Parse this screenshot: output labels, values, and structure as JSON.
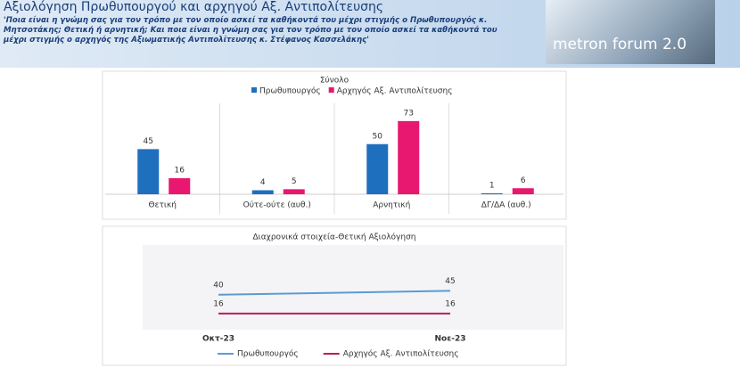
{
  "header": {
    "title": "Αξιολόγηση Πρωθυπουργού και αρχηγού Αξ. Αντιπολίτευσης",
    "subtitle": "'Ποια είναι η γνώμη σας για τον τρόπο με τον οποίο ασκεί τα καθήκοντά του μέχρι στιγμής ο Πρωθυπουργός κ. Μητσοτάκης; Θετική ή αρνητική; Και ποια είναι η γνώμη σας για τον τρόπο με τον οποίο ασκεί τα καθήκοντά του μέχρι στιγμής ο αρχηγός της Αξιωματικής Αντιπολίτευσης κ. Στέφανος Κασσελάκης'",
    "logo": "metron forum 2.0"
  },
  "chart_data": [
    {
      "type": "bar",
      "title": "Σύνολο",
      "categories": [
        "Θετική",
        "Ούτε-ούτε (αυθ.)",
        "Αρνητική",
        "ΔΓ/ΔΑ (αυθ.)"
      ],
      "series": [
        {
          "name": "Πρωθυπουργός",
          "color": "#1f6fbf",
          "values": [
            45,
            4,
            50,
            1
          ]
        },
        {
          "name": "Αρχηγός Αξ. Αντιπολίτευσης",
          "color": "#e8176f",
          "values": [
            16,
            5,
            73,
            6
          ]
        }
      ],
      "ylim": [
        0,
        80
      ],
      "legend": "top"
    },
    {
      "type": "line",
      "title": "Διαχρονικά στοιχεία-Θετική Αξιολόγηση",
      "categories": [
        "Οκτ-23",
        "Νοε-23"
      ],
      "series": [
        {
          "name": "Πρωθυπουργός",
          "color": "#5b9bd5",
          "values": [
            40,
            45
          ]
        },
        {
          "name": "Αρχηγός Αξ. Αντιπολίτευσης",
          "color": "#c2185b",
          "values": [
            16,
            16
          ]
        }
      ],
      "ylim": [
        0,
        100
      ],
      "legend": "bottom"
    }
  ]
}
